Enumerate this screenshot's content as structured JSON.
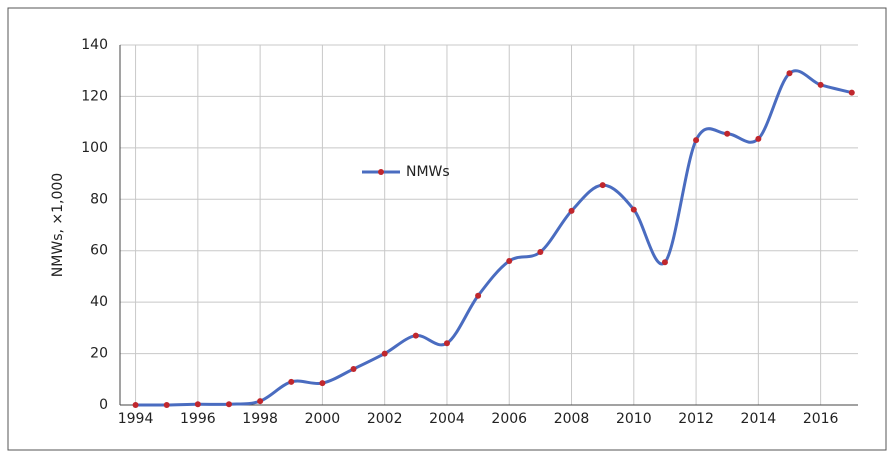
{
  "chart_data": {
    "type": "line",
    "y_label": "NMWs, ×1,000",
    "x": [
      1994,
      1995,
      1996,
      1997,
      1998,
      1999,
      2000,
      2001,
      2002,
      2003,
      2004,
      2005,
      2006,
      2007,
      2008,
      2009,
      2010,
      2011,
      2012,
      2013,
      2014,
      2015,
      2016,
      2017
    ],
    "series": [
      {
        "name": "NMWs",
        "color": "#4a6cc0",
        "marker_color": "#c0272d",
        "values": [
          0,
          0,
          0.3,
          0.3,
          1.5,
          9,
          8.5,
          14,
          20,
          27,
          24,
          42.5,
          56,
          59.5,
          75.5,
          85.5,
          76,
          55.5,
          103,
          105.5,
          103.5,
          129,
          124.5,
          121.5
        ]
      }
    ],
    "xlim": [
      1993.5,
      2017.2
    ],
    "xticks": [
      1994,
      1996,
      1998,
      2000,
      2002,
      2004,
      2006,
      2008,
      2010,
      2012,
      2014,
      2016
    ],
    "ylim": [
      0,
      140
    ],
    "yticks": [
      0,
      20,
      40,
      60,
      80,
      100,
      120,
      140
    ],
    "grid": true,
    "smooth": true
  }
}
